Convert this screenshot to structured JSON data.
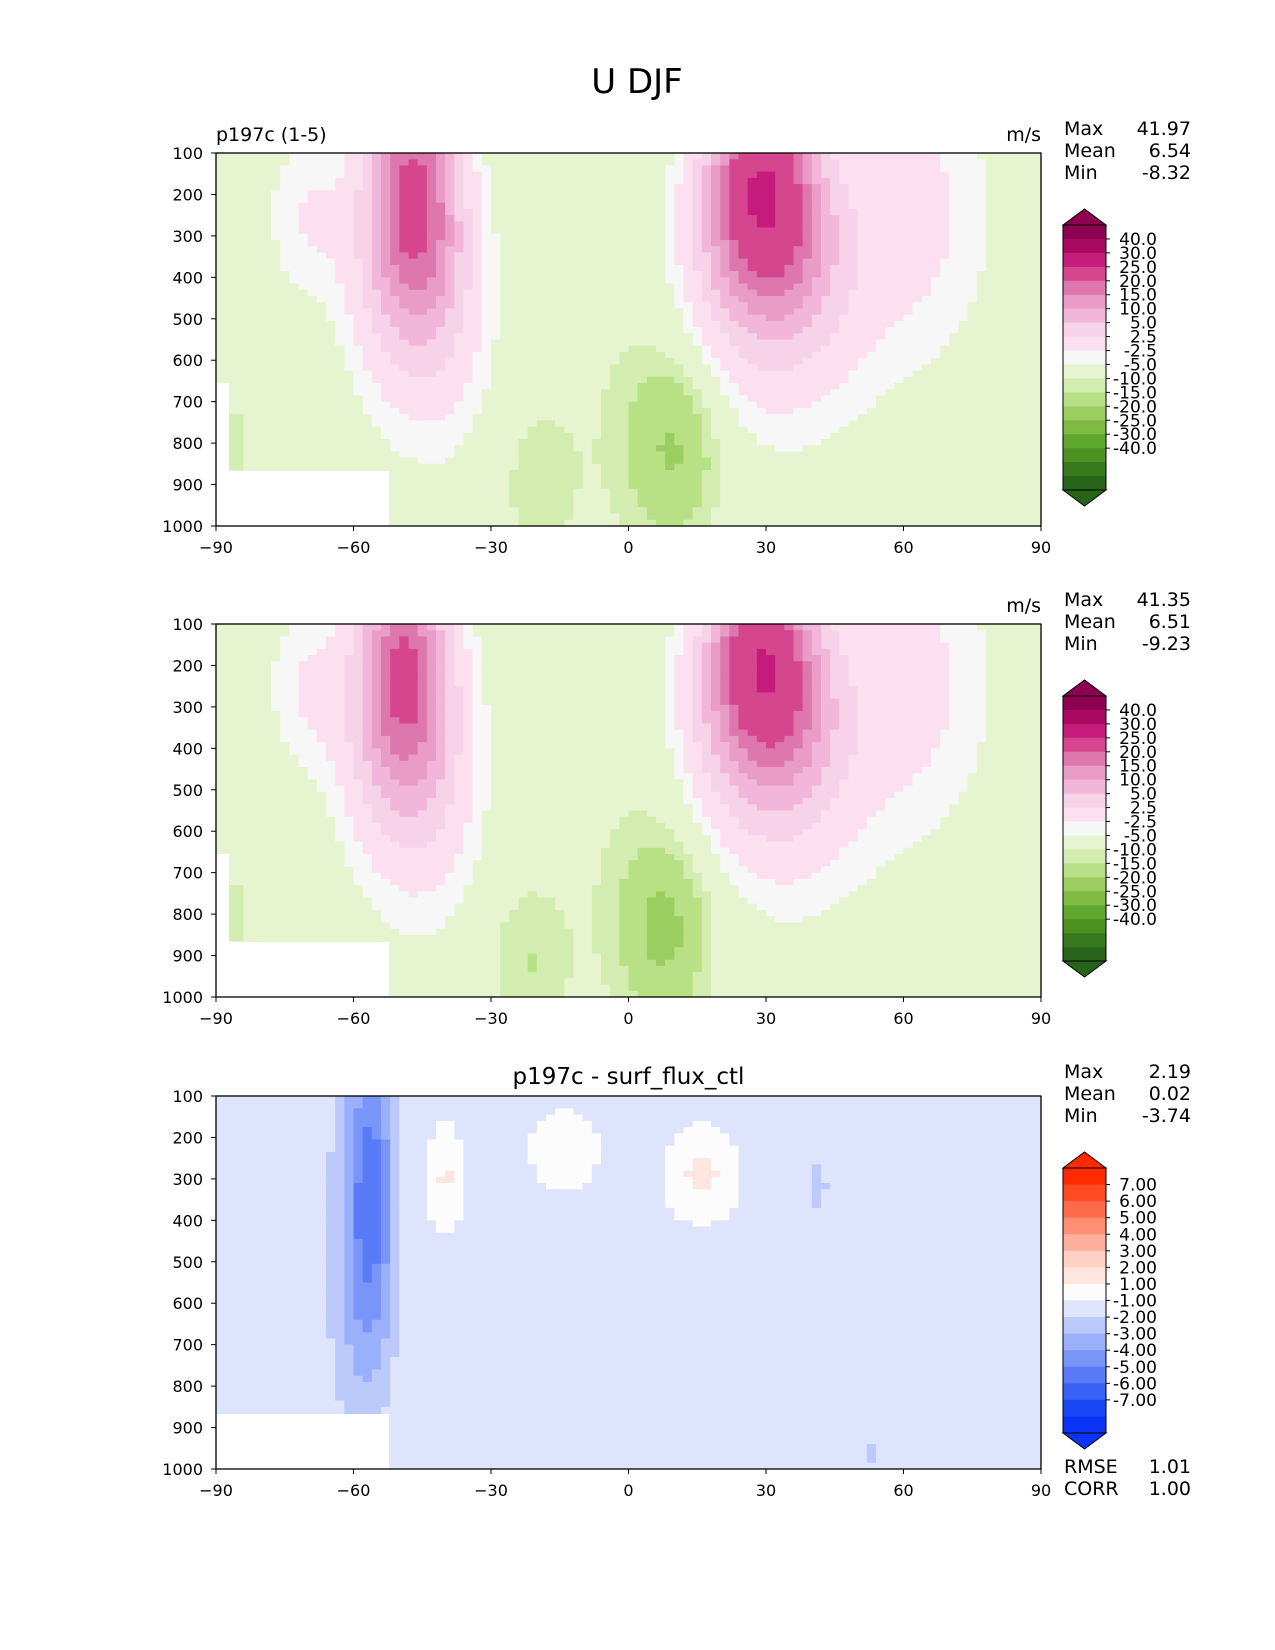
{
  "figure_title": "U DJF",
  "chart_data": [
    {
      "type": "heatmap",
      "title": "",
      "subtitle_left": "p197c (1-5)",
      "units": "m/s",
      "stats": [
        {
          "label": "Max",
          "value": "41.97"
        },
        {
          "label": "Mean",
          "value": "6.54"
        },
        {
          "label": "Min",
          "value": "-8.32"
        }
      ],
      "x_ticks": [
        "−90",
        "−60",
        "−30",
        "0",
        "30",
        "60",
        "90"
      ],
      "y_ticks": [
        "100",
        "200",
        "300",
        "400",
        "500",
        "600",
        "700",
        "800",
        "900",
        "1000"
      ],
      "xlim": [
        -90,
        90
      ],
      "ylim": [
        1000,
        100
      ],
      "colorbar": {
        "labels": [
          "40.0",
          "30.0",
          "25.0",
          "20.0",
          "15.0",
          "10.0",
          "5.0",
          "2.5",
          "-2.5",
          "-5.0",
          "-10.0",
          "-15.0",
          "-20.0",
          "-25.0",
          "-30.0",
          "-40.0"
        ],
        "colors": [
          "#8e0152",
          "#a9095e",
          "#c51b7d",
          "#d6468f",
          "#de77ae",
          "#e89cc6",
          "#f1b6da",
          "#f7d3e9",
          "#fde0ef",
          "#f7f7f7",
          "#e6f5d0",
          "#d3edb0",
          "#b8e186",
          "#9ccd61",
          "#7fbc41",
          "#5ea830",
          "#4d9221",
          "#357a1c",
          "#276419"
        ],
        "extend_top": "#8e0152",
        "extend_bottom": "#276419"
      },
      "jets": [
        {
          "lat": -47,
          "p": 235,
          "peak": 34
        },
        {
          "lat": 29,
          "p": 210,
          "peak": 42
        }
      ],
      "easterly_cores": [
        {
          "lat": 10,
          "p": 820,
          "min": -8
        },
        {
          "lat": -20,
          "p": 900,
          "min": -4
        }
      ]
    },
    {
      "type": "heatmap",
      "title": "",
      "units": "m/s",
      "stats": [
        {
          "label": "Max",
          "value": "41.35"
        },
        {
          "label": "Mean",
          "value": "6.51"
        },
        {
          "label": "Min",
          "value": "-9.23"
        }
      ],
      "x_ticks": [
        "−90",
        "−60",
        "−30",
        "0",
        "30",
        "60",
        "90"
      ],
      "y_ticks": [
        "100",
        "200",
        "300",
        "400",
        "500",
        "600",
        "700",
        "800",
        "900",
        "1000"
      ],
      "xlim": [
        -90,
        90
      ],
      "ylim": [
        1000,
        100
      ],
      "colorbar": {
        "labels": [
          "40.0",
          "30.0",
          "25.0",
          "20.0",
          "15.0",
          "10.0",
          "5.0",
          "2.5",
          "-2.5",
          "-5.0",
          "-10.0",
          "-15.0",
          "-20.0",
          "-25.0",
          "-30.0",
          "-40.0"
        ],
        "colors": [
          "#8e0152",
          "#a9095e",
          "#c51b7d",
          "#d6468f",
          "#de77ae",
          "#e89cc6",
          "#f1b6da",
          "#f7d3e9",
          "#fde0ef",
          "#f7f7f7",
          "#e6f5d0",
          "#d3edb0",
          "#b8e186",
          "#9ccd61",
          "#7fbc41",
          "#5ea830",
          "#4d9221",
          "#357a1c",
          "#276419"
        ],
        "extend_top": "#8e0152",
        "extend_bottom": "#276419"
      },
      "jets": [
        {
          "lat": -49,
          "p": 240,
          "peak": 33
        },
        {
          "lat": 29,
          "p": 210,
          "peak": 41
        }
      ],
      "easterly_cores": [
        {
          "lat": 8,
          "p": 840,
          "min": -9
        },
        {
          "lat": -22,
          "p": 920,
          "min": -5
        }
      ]
    },
    {
      "type": "heatmap",
      "title": "p197c - surf_flux_ctl",
      "units": "",
      "stats": [
        {
          "label": "Max",
          "value": "2.19"
        },
        {
          "label": "Mean",
          "value": "0.02"
        },
        {
          "label": "Min",
          "value": "-3.74"
        }
      ],
      "footer_stats": [
        {
          "label": "RMSE",
          "value": "1.01"
        },
        {
          "label": "CORR",
          "value": "1.00"
        }
      ],
      "x_ticks": [
        "−90",
        "−60",
        "−30",
        "0",
        "30",
        "60",
        "90"
      ],
      "y_ticks": [
        "100",
        "200",
        "300",
        "400",
        "500",
        "600",
        "700",
        "800",
        "900",
        "1000"
      ],
      "xlim": [
        -90,
        90
      ],
      "ylim": [
        1000,
        100
      ],
      "colorbar": {
        "labels": [
          "7.00",
          "6.00",
          "5.00",
          "4.00",
          "3.00",
          "2.00",
          "1.00",
          "-1.00",
          "-2.00",
          "-3.00",
          "-4.00",
          "-5.00",
          "-6.00",
          "-7.00"
        ],
        "colors": [
          "#ff2a00",
          "#ff4a24",
          "#ff6b4a",
          "#ff8e72",
          "#ffb09c",
          "#ffd1c5",
          "#fde6df",
          "#fcfcfc",
          "#dde4fc",
          "#bccafb",
          "#9bb0fa",
          "#7a95f8",
          "#5a7bf7",
          "#3961f6",
          "#1848f5",
          "#0a33f5"
        ],
        "extend_top": "#ff2a00",
        "extend_bottom": "#0a33f5"
      },
      "anomalies": [
        {
          "lat": -56,
          "p": 330,
          "value": -3.7
        },
        {
          "lat": -40,
          "p": 300,
          "value": 2.1
        },
        {
          "lat": -14,
          "p": 230,
          "value": 2.0
        },
        {
          "lat": 16,
          "p": 290,
          "value": 2.2
        },
        {
          "lat": 41,
          "p": 320,
          "value": -1.4
        },
        {
          "lat": 53,
          "p": 960,
          "value": -1.2
        }
      ]
    }
  ]
}
